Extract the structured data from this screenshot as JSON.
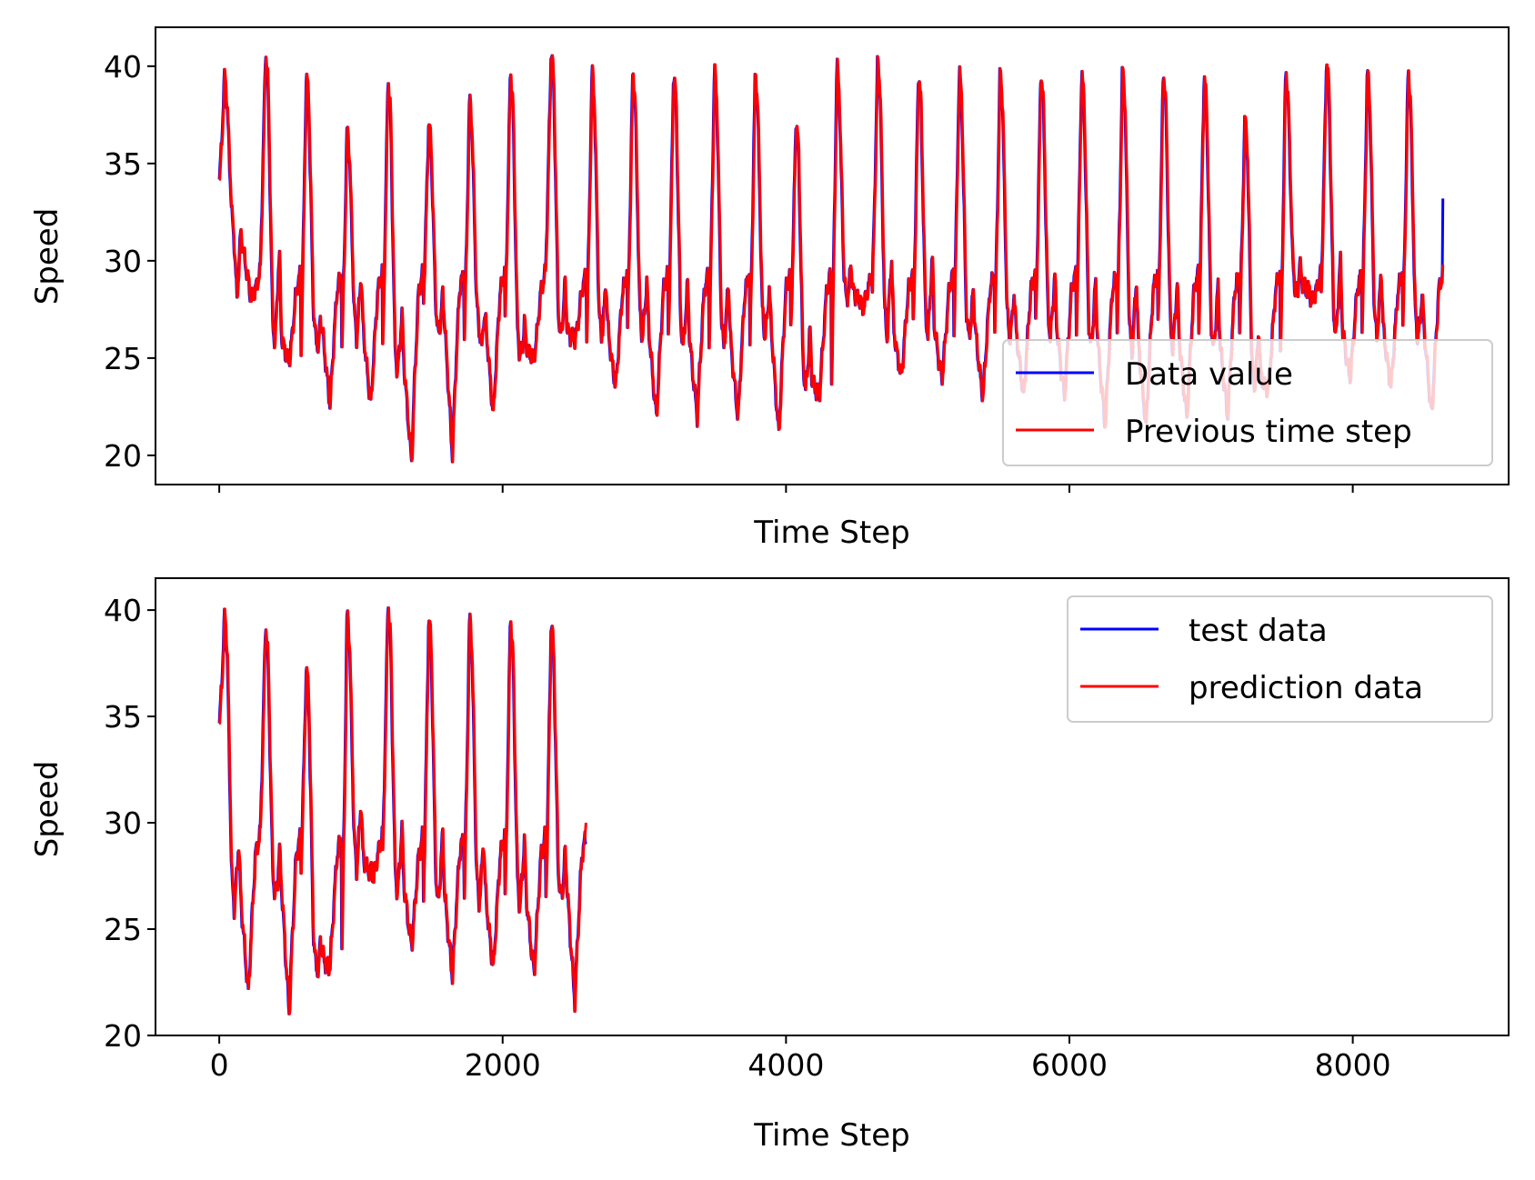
{
  "colors": {
    "series_a": "#0000ff",
    "series_b": "#ff0000",
    "axes": "#000000",
    "legend_border": "#cccccc",
    "background": "#ffffff"
  },
  "chart_data": [
    {
      "type": "line",
      "xlabel": "Time Step",
      "ylabel": "Speed",
      "xlim": [
        -450,
        9100
      ],
      "ylim": [
        18.5,
        42
      ],
      "xticks": [
        0,
        2000,
        4000,
        6000,
        8000
      ],
      "xtick_labels_visible": false,
      "yticks": [
        20,
        25,
        30,
        35,
        40
      ],
      "ytick_labels": [
        "20",
        "25",
        "30",
        "35",
        "40"
      ],
      "grid": false,
      "legend_position": "lower-right",
      "legend_alpha": 0.8,
      "x_range": [
        0,
        8640
      ],
      "points_per_day": 288,
      "series": [
        {
          "name": "Data value",
          "color": "#0000ff",
          "end_value": 33.2
        },
        {
          "name": "Previous time step",
          "color": "#ff0000",
          "end_value": 29.8
        }
      ],
      "day_shapes": [
        {
          "start": 34.0,
          "peak": 39.7,
          "trough": 31.0,
          "low": 29.0,
          "secondary": 29.5
        },
        {
          "start": 29.5,
          "peak": 40.9,
          "trough": 25.6,
          "low": 24.8,
          "secondary": 30.4
        },
        {
          "start": 25.5,
          "peak": 39.8,
          "trough": 26.0,
          "low": 22.6,
          "secondary": 27.0
        },
        {
          "start": 25.5,
          "peak": 37.0,
          "trough": 26.0,
          "low": 22.6,
          "secondary": 29.4
        },
        {
          "start": 25.5,
          "peak": 39.5,
          "trough": 24.2,
          "low": 19.6,
          "secondary": 27.4
        },
        {
          "start": 28.0,
          "peak": 37.4,
          "trough": 26.2,
          "low": 20.0,
          "secondary": 28.5
        },
        {
          "start": 26.0,
          "peak": 38.5,
          "trough": 26.5,
          "low": 22.0,
          "secondary": 27.0
        },
        {
          "start": 27.0,
          "peak": 39.9,
          "trough": 25.1,
          "low": 25.1,
          "secondary": 27.0
        },
        {
          "start": 30.0,
          "peak": 41.0,
          "trough": 26.0,
          "low": 26.0,
          "secondary": 29.0
        },
        {
          "start": 26.0,
          "peak": 39.9,
          "trough": 26.0,
          "low": 23.5,
          "secondary": 29.0
        },
        {
          "start": 26.5,
          "peak": 39.9,
          "trough": 26.0,
          "low": 21.9,
          "secondary": 29.1
        },
        {
          "start": 26.0,
          "peak": 39.9,
          "trough": 25.5,
          "low": 22.0,
          "secondary": 28.9
        },
        {
          "start": 25.8,
          "peak": 39.9,
          "trough": 25.5,
          "low": 21.9,
          "secondary": 29.0
        },
        {
          "start": 25.7,
          "peak": 39.8,
          "trough": 26.1,
          "low": 21.0,
          "secondary": 28.7
        },
        {
          "start": 26.3,
          "peak": 37.5,
          "trough": 23.3,
          "low": 23.3,
          "secondary": 26.5
        },
        {
          "start": 24.0,
          "peak": 40.2,
          "trough": 28.0,
          "low": 28.0,
          "secondary": 30.0
        },
        {
          "start": 28.5,
          "peak": 40.5,
          "trough": 26.0,
          "low": 24.0,
          "secondary": 30.2
        },
        {
          "start": 26.5,
          "peak": 39.9,
          "trough": 26.0,
          "low": 24.0,
          "secondary": 30.2
        },
        {
          "start": 26.5,
          "peak": 39.9,
          "trough": 26.0,
          "low": 23.0,
          "secondary": 28.6
        },
        {
          "start": 26.5,
          "peak": 39.9,
          "trough": 26.0,
          "low": 23.0,
          "secondary": 28.5
        },
        {
          "start": 26.5,
          "peak": 39.9,
          "trough": 26.0,
          "low": 23.0,
          "secondary": 29.4
        },
        {
          "start": 26.5,
          "peak": 39.8,
          "trough": 25.4,
          "low": 21.5,
          "secondary": 29.0
        },
        {
          "start": 26.5,
          "peak": 40.0,
          "trough": 25.2,
          "low": 21.5,
          "secondary": 29.1
        },
        {
          "start": 26.5,
          "peak": 39.9,
          "trough": 25.4,
          "low": 21.9,
          "secondary": 29.0
        },
        {
          "start": 26.5,
          "peak": 39.7,
          "trough": 25.3,
          "low": 22.0,
          "secondary": 28.8
        },
        {
          "start": 26.5,
          "peak": 37.5,
          "trough": 23.5,
          "low": 23.5,
          "secondary": 26.5
        },
        {
          "start": 25.0,
          "peak": 40.0,
          "trough": 28.5,
          "low": 28.5,
          "secondary": 30.0
        },
        {
          "start": 28.5,
          "peak": 40.5,
          "trough": 26.0,
          "low": 24.0,
          "secondary": 30.1
        },
        {
          "start": 26.5,
          "peak": 39.9,
          "trough": 26.0,
          "low": 23.5,
          "secondary": 29.5
        },
        {
          "start": 26.5,
          "peak": 39.9,
          "trough": 26.0,
          "low": 22.0,
          "secondary": 28.5
        }
      ]
    },
    {
      "type": "line",
      "xlabel": "Time Step",
      "ylabel": "Speed",
      "xlim": [
        -450,
        9100
      ],
      "ylim": [
        20,
        41.5
      ],
      "xticks": [
        0,
        2000,
        4000,
        6000,
        8000
      ],
      "xtick_labels": [
        "0",
        "2000",
        "4000",
        "6000",
        "8000"
      ],
      "yticks": [
        20,
        25,
        30,
        35,
        40
      ],
      "ytick_labels": [
        "20",
        "25",
        "30",
        "35",
        "40"
      ],
      "grid": false,
      "legend_position": "upper-right",
      "legend_alpha": 0.8,
      "x_range": [
        0,
        2592
      ],
      "points_per_day": 288,
      "series": [
        {
          "name": "test data",
          "color": "#0000ff",
          "end_value": 29.1
        },
        {
          "name": "prediction data",
          "color": "#ff0000",
          "end_value": 30.0
        }
      ],
      "day_shapes": [
        {
          "start": 34.5,
          "peak": 39.9,
          "trough": 26.0,
          "low": 22.0,
          "secondary": 29.2
        },
        {
          "start": 29.5,
          "peak": 39.5,
          "trough": 26.5,
          "low": 21.0,
          "secondary": 28.8
        },
        {
          "start": 28.0,
          "peak": 37.5,
          "trough": 23.3,
          "low": 23.3,
          "secondary": 24.5
        },
        {
          "start": 24.0,
          "peak": 40.1,
          "trough": 27.8,
          "low": 27.8,
          "secondary": 31.1
        },
        {
          "start": 28.5,
          "peak": 40.5,
          "trough": 26.6,
          "low": 24.2,
          "secondary": 29.9
        },
        {
          "start": 26.5,
          "peak": 39.9,
          "trough": 26.1,
          "low": 22.8,
          "secondary": 29.6
        },
        {
          "start": 26.5,
          "peak": 39.8,
          "trough": 26.2,
          "low": 23.1,
          "secondary": 29.3
        },
        {
          "start": 26.5,
          "peak": 39.8,
          "trough": 26.0,
          "low": 22.9,
          "secondary": 29.3
        },
        {
          "start": 26.5,
          "peak": 39.7,
          "trough": 26.4,
          "low": 21.6,
          "secondary": 28.7
        }
      ]
    }
  ]
}
